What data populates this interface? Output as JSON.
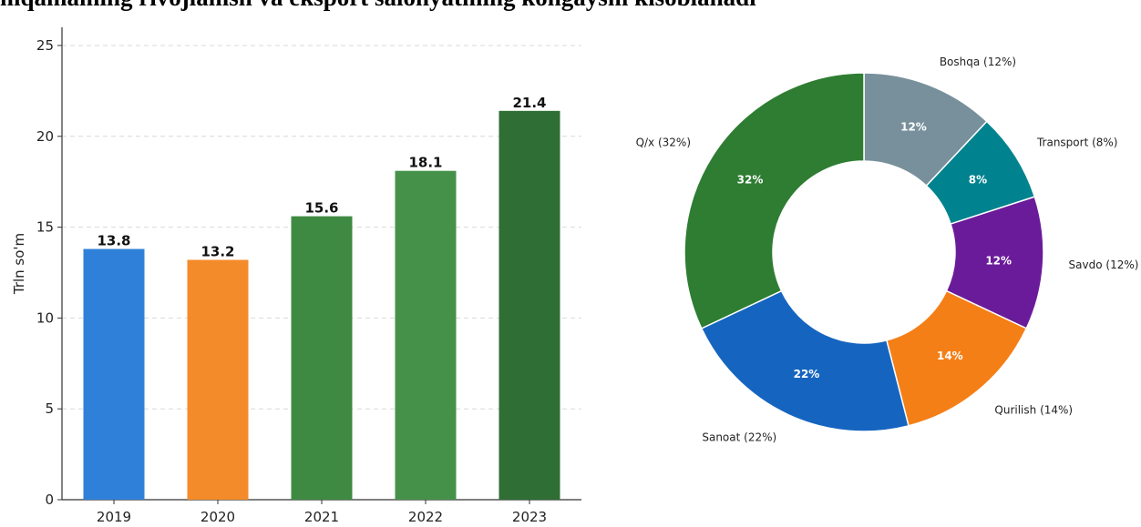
{
  "header_text": "mqamaming rivojlamsh va eksport salonyatming kongaysm kisoblanadi",
  "chart_data": [
    {
      "type": "bar",
      "categories": [
        "2019",
        "2020",
        "2021",
        "2022",
        "2023"
      ],
      "values": [
        13.8,
        13.2,
        15.6,
        18.1,
        21.4
      ],
      "value_labels": [
        "13.8",
        "13.2",
        "15.6",
        "18.1",
        "21.4"
      ],
      "colors": [
        "#2f80d8",
        "#f48b2a",
        "#3f8a42",
        "#46914a",
        "#2f6e35"
      ],
      "ylabel": "Trln so'm",
      "ylim": [
        0,
        26
      ],
      "yticks": [
        0,
        5,
        10,
        15,
        20,
        25
      ],
      "grid": true
    },
    {
      "type": "pie",
      "donut": true,
      "slices": [
        {
          "label": "Boshqa (12%)",
          "inner": "12%",
          "value": 12,
          "color": "#78909c"
        },
        {
          "label": "Transport (8%)",
          "inner": "8%",
          "value": 8,
          "color": "#00838f"
        },
        {
          "label": "Savdo (12%)",
          "inner": "12%",
          "value": 12,
          "color": "#6a1b9a"
        },
        {
          "label": "Qurilish (14%)",
          "inner": "14%",
          "value": 14,
          "color": "#f57f17"
        },
        {
          "label": "Sanoat (22%)",
          "inner": "22%",
          "value": 22,
          "color": "#1565c0"
        },
        {
          "label": "Q/x (32%)",
          "inner": "32%",
          "value": 32,
          "color": "#2e7d32"
        }
      ]
    }
  ]
}
